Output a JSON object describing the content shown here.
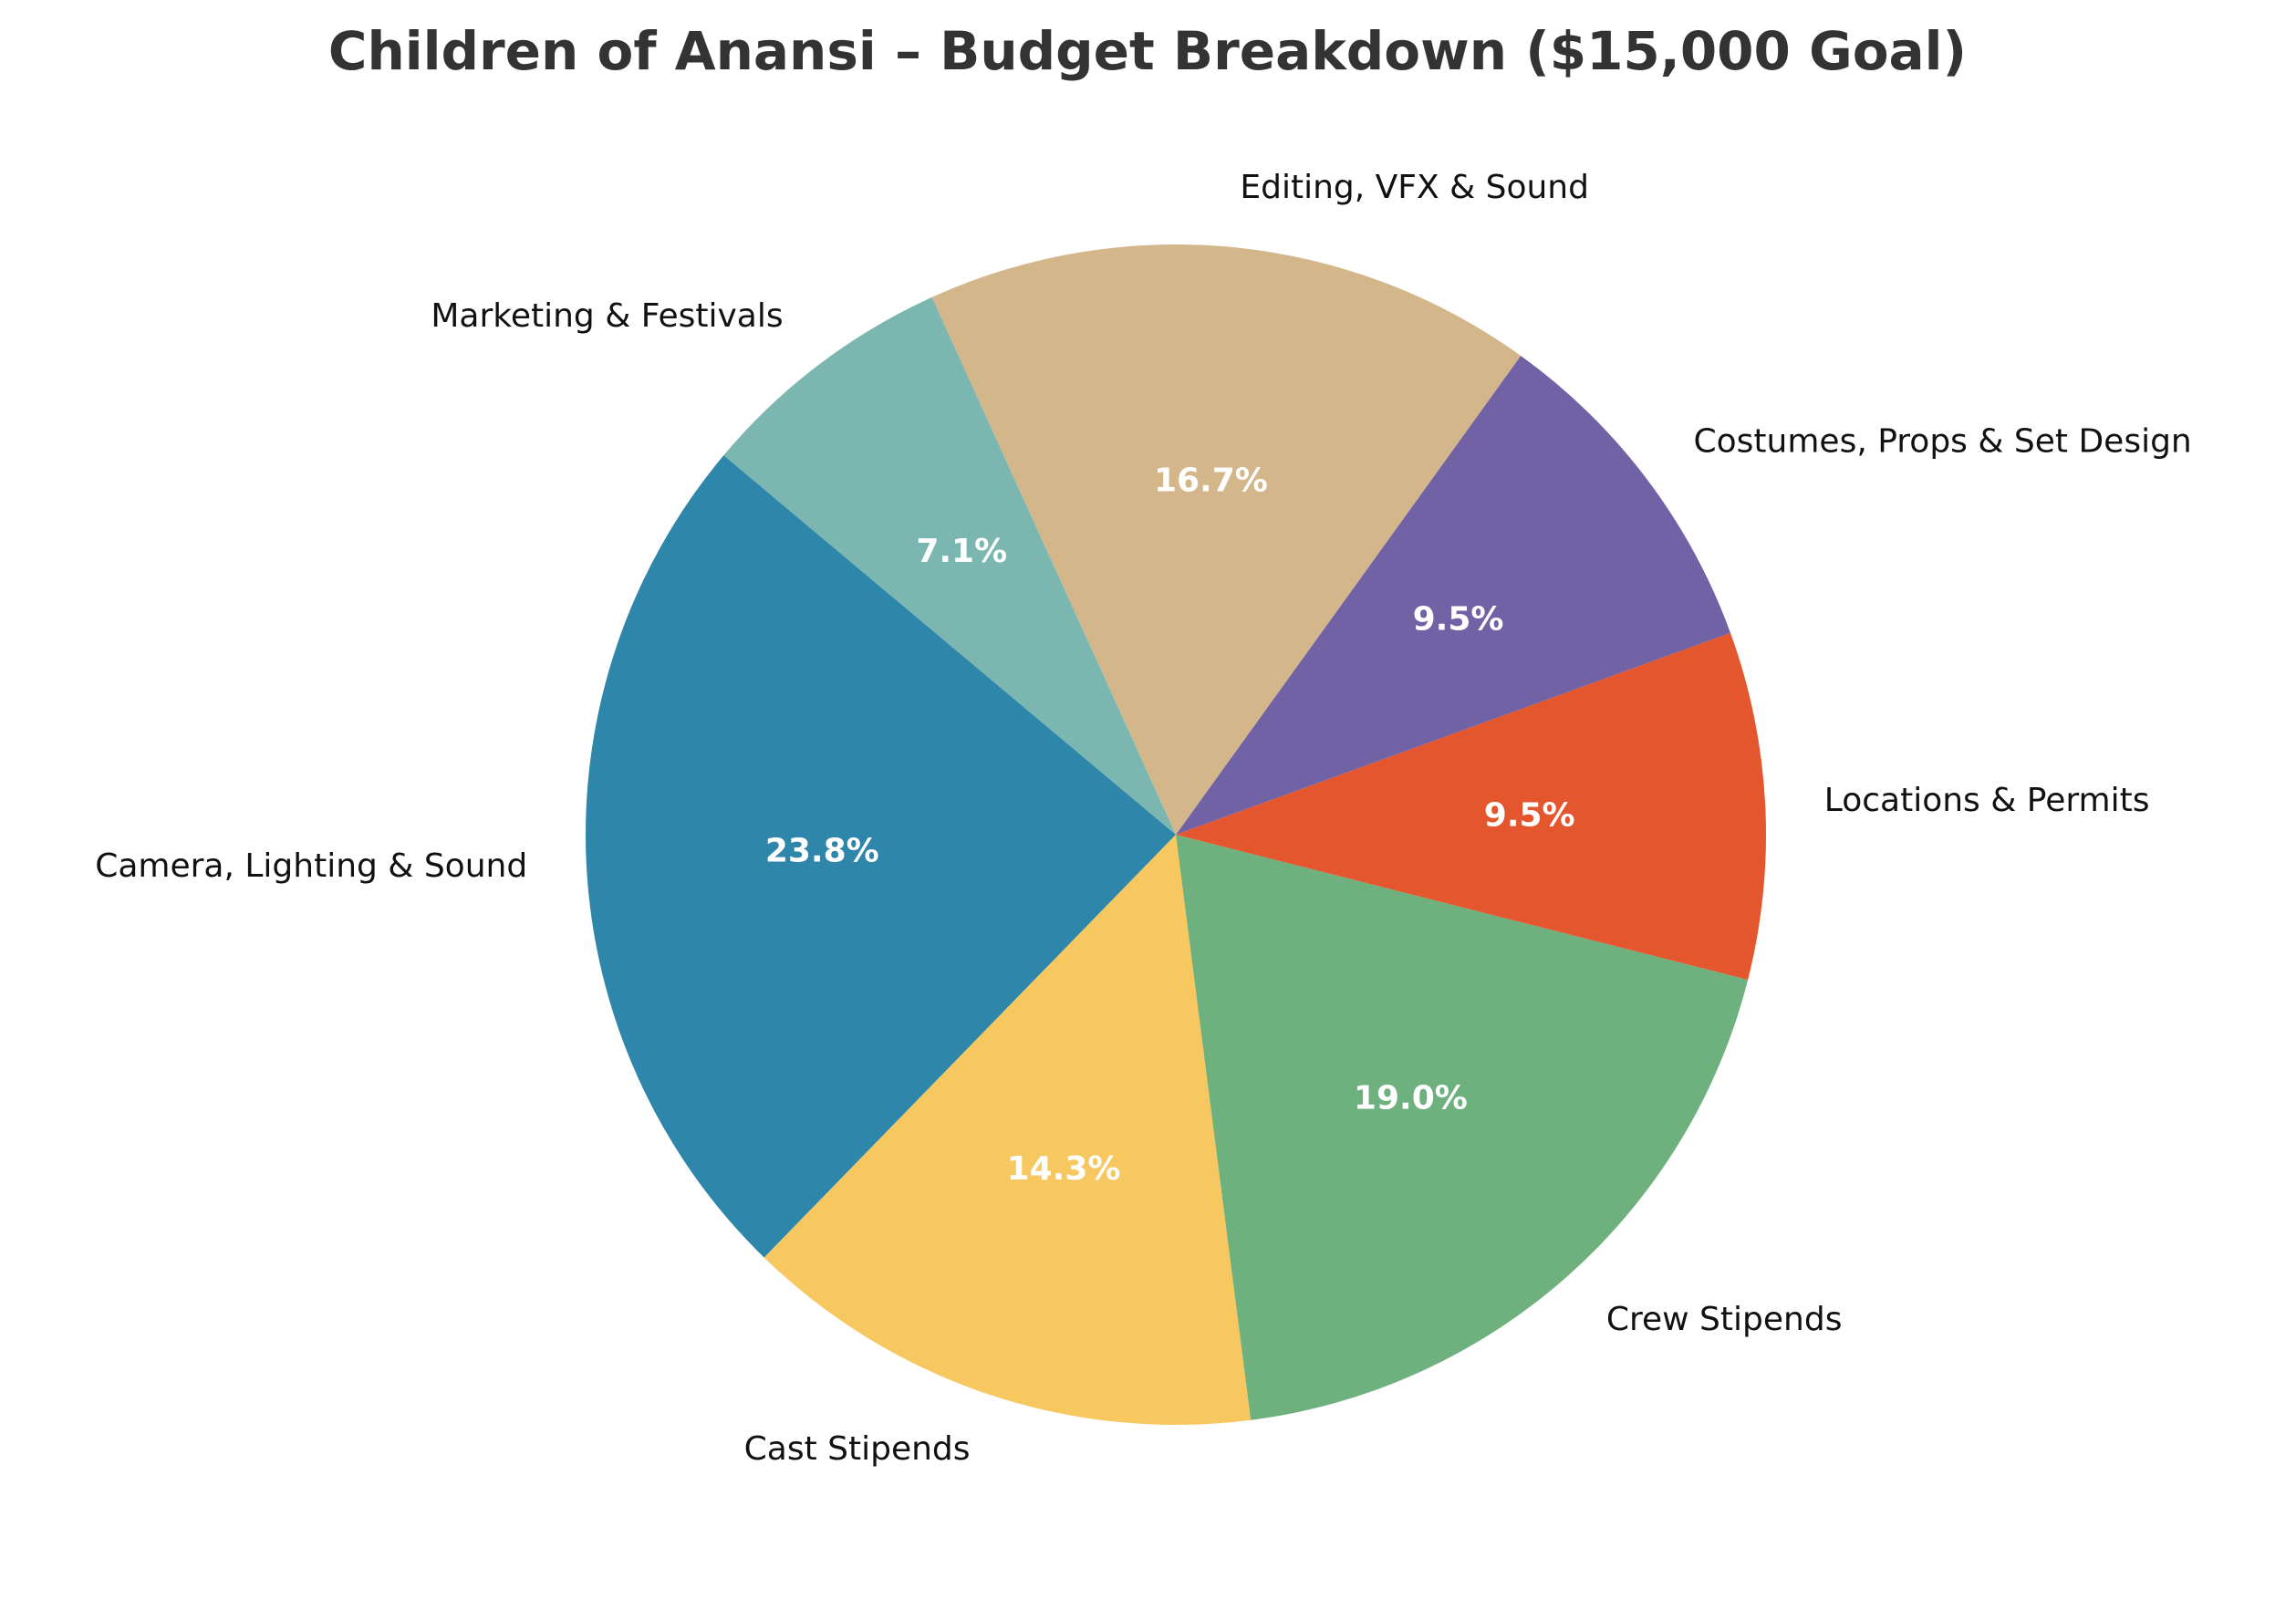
{
  "chart_data": {
    "type": "pie",
    "title": "Children of Anansi – Budget Breakdown ($15,000 Goal)",
    "categories": [
      "Camera, Lighting & Sound",
      "Cast Stipends",
      "Crew Stipends",
      "Locations & Permits",
      "Costumes, Props & Set Design",
      "Editing, VFX & Sound",
      "Marketing & Festivals"
    ],
    "values": [
      23.8,
      14.3,
      19.0,
      9.5,
      9.5,
      16.7,
      7.1
    ],
    "value_labels": [
      "23.8%",
      "14.3%",
      "19.0%",
      "9.5%",
      "9.5%",
      "16.7%",
      "7.1%"
    ],
    "colors": [
      "#2e86ab",
      "#f6c85f",
      "#6fb07f",
      "#e4572e",
      "#7162a6",
      "#d3b78a",
      "#7bb6b0"
    ]
  }
}
